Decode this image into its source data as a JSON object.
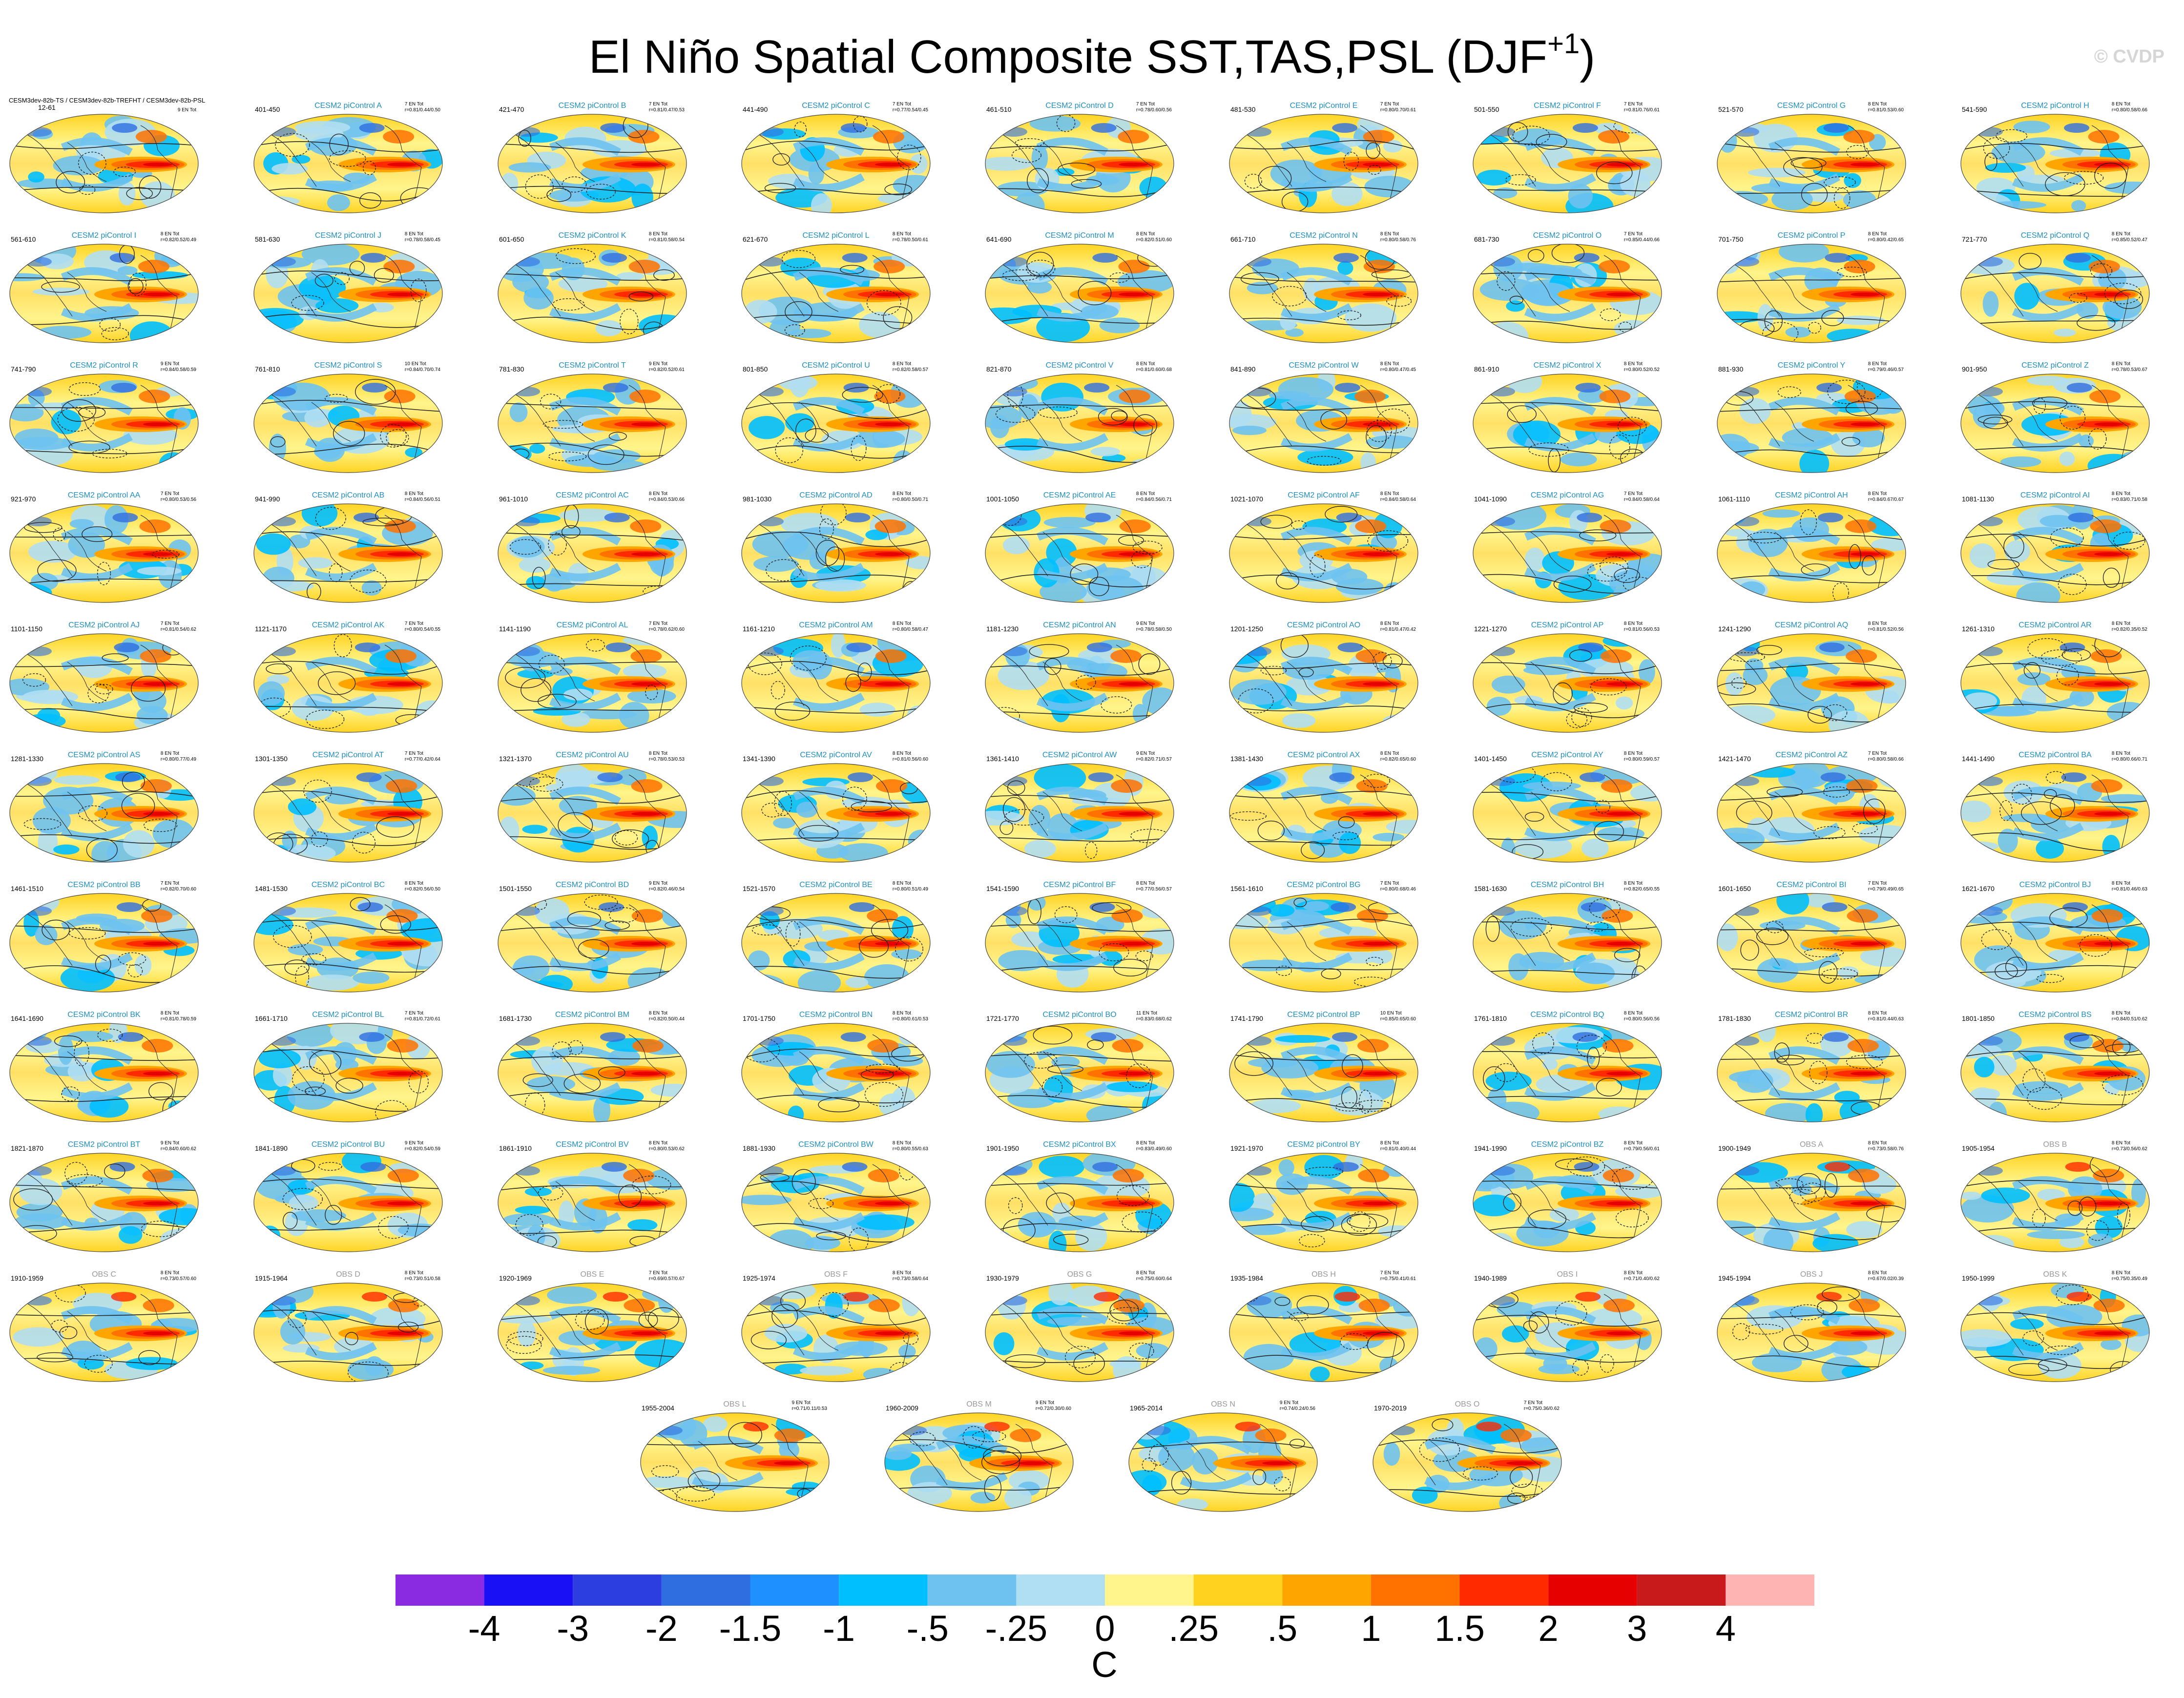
{
  "title": "El Niño Spatial Composite SST,TAS,PSL (DJF",
  "title_sup": "+1",
  "title_close": ")",
  "watermark": "© CVDP",
  "reference_panel": {
    "label": "CESM3dev-82b-TS / CESM3dev-82b-TREFHT / CESM3dev-82b-PSL",
    "years": "12-61",
    "events": "9 EN Tot"
  },
  "panels": [
    {
      "name": "CESM2 piControl A",
      "years": "401-450",
      "events": "7 EN Tot",
      "stats": "r=0.81/0.44/0.50"
    },
    {
      "name": "CESM2 piControl B",
      "years": "421-470",
      "events": "7 EN Tot",
      "stats": "r=0.81/0.47/0.53"
    },
    {
      "name": "CESM2 piControl C",
      "years": "441-490",
      "events": "7 EN Tot",
      "stats": "r=0.77/0.54/0.45"
    },
    {
      "name": "CESM2 piControl D",
      "years": "461-510",
      "events": "7 EN Tot",
      "stats": "r=0.78/0.60/0.56"
    },
    {
      "name": "CESM2 piControl E",
      "years": "481-530",
      "events": "7 EN Tot",
      "stats": "r=0.80/0.70/0.61"
    },
    {
      "name": "CESM2 piControl F",
      "years": "501-550",
      "events": "7 EN Tot",
      "stats": "r=0.81/0.76/0.61"
    },
    {
      "name": "CESM2 piControl G",
      "years": "521-570",
      "events": "8 EN Tot",
      "stats": "r=0.81/0.53/0.60"
    },
    {
      "name": "CESM2 piControl H",
      "years": "541-590",
      "events": "8 EN Tot",
      "stats": "r=0.80/0.58/0.66"
    },
    {
      "name": "CESM2 piControl I",
      "years": "561-610",
      "events": "8 EN Tot",
      "stats": "r=0.82/0.52/0.49"
    },
    {
      "name": "CESM2 piControl J",
      "years": "581-630",
      "events": "8 EN Tot",
      "stats": "r=0.78/0.58/0.45"
    },
    {
      "name": "CESM2 piControl K",
      "years": "601-650",
      "events": "8 EN Tot",
      "stats": "r=0.81/0.58/0.54"
    },
    {
      "name": "CESM2 piControl L",
      "years": "621-670",
      "events": "8 EN Tot",
      "stats": "r=0.78/0.50/0.61"
    },
    {
      "name": "CESM2 piControl M",
      "years": "641-690",
      "events": "8 EN Tot",
      "stats": "r=0.82/0.51/0.60"
    },
    {
      "name": "CESM2 piControl N",
      "years": "661-710",
      "events": "8 EN Tot",
      "stats": "r=0.80/0.58/0.76"
    },
    {
      "name": "CESM2 piControl O",
      "years": "681-730",
      "events": "7 EN Tot",
      "stats": "r=0.85/0.44/0.66"
    },
    {
      "name": "CESM2 piControl P",
      "years": "701-750",
      "events": "8 EN Tot",
      "stats": "r=0.80/0.42/0.65"
    },
    {
      "name": "CESM2 piControl Q",
      "years": "721-770",
      "events": "8 EN Tot",
      "stats": "r=0.85/0.52/0.47"
    },
    {
      "name": "CESM2 piControl R",
      "years": "741-790",
      "events": "9 EN Tot",
      "stats": "r=0.84/0.58/0.59"
    },
    {
      "name": "CESM2 piControl S",
      "years": "761-810",
      "events": "10 EN Tot",
      "stats": "r=0.84/0.70/0.74"
    },
    {
      "name": "CESM2 piControl T",
      "years": "781-830",
      "events": "9 EN Tot",
      "stats": "r=0.82/0.52/0.61"
    },
    {
      "name": "CESM2 piControl U",
      "years": "801-850",
      "events": "8 EN Tot",
      "stats": "r=0.82/0.58/0.57"
    },
    {
      "name": "CESM2 piControl V",
      "years": "821-870",
      "events": "8 EN Tot",
      "stats": "r=0.81/0.60/0.68"
    },
    {
      "name": "CESM2 piControl W",
      "years": "841-890",
      "events": "8 EN Tot",
      "stats": "r=0.80/0.47/0.45"
    },
    {
      "name": "CESM2 piControl X",
      "years": "861-910",
      "events": "8 EN Tot",
      "stats": "r=0.80/0.52/0.52"
    },
    {
      "name": "CESM2 piControl Y",
      "years": "881-930",
      "events": "8 EN Tot",
      "stats": "r=0.79/0.46/0.57"
    },
    {
      "name": "CESM2 piControl Z",
      "years": "901-950",
      "events": "8 EN Tot",
      "stats": "r=0.78/0.53/0.67"
    },
    {
      "name": "CESM2 piControl AA",
      "years": "921-970",
      "events": "7 EN Tot",
      "stats": "r=0.80/0.53/0.56"
    },
    {
      "name": "CESM2 piControl AB",
      "years": "941-990",
      "events": "8 EN Tot",
      "stats": "r=0.84/0.56/0.51"
    },
    {
      "name": "CESM2 piControl AC",
      "years": "961-1010",
      "events": "8 EN Tot",
      "stats": "r=0.84/0.53/0.66"
    },
    {
      "name": "CESM2 piControl AD",
      "years": "981-1030",
      "events": "8 EN Tot",
      "stats": "r=0.80/0.50/0.71"
    },
    {
      "name": "CESM2 piControl AE",
      "years": "1001-1050",
      "events": "8 EN Tot",
      "stats": "r=0.84/0.56/0.71"
    },
    {
      "name": "CESM2 piControl AF",
      "years": "1021-1070",
      "events": "8 EN Tot",
      "stats": "r=0.84/0.58/0.64"
    },
    {
      "name": "CESM2 piControl AG",
      "years": "1041-1090",
      "events": "7 EN Tot",
      "stats": "r=0.84/0.58/0.64"
    },
    {
      "name": "CESM2 piControl AH",
      "years": "1061-1110",
      "events": "8 EN Tot",
      "stats": "r=0.84/0.67/0.67"
    },
    {
      "name": "CESM2 piControl AI",
      "years": "1081-1130",
      "events": "8 EN Tot",
      "stats": "r=0.83/0.71/0.58"
    },
    {
      "name": "CESM2 piControl AJ",
      "years": "1101-1150",
      "events": "7 EN Tot",
      "stats": "r=0.81/0.54/0.62"
    },
    {
      "name": "CESM2 piControl AK",
      "years": "1121-1170",
      "events": "7 EN Tot",
      "stats": "r=0.80/0.54/0.55"
    },
    {
      "name": "CESM2 piControl AL",
      "years": "1141-1190",
      "events": "7 EN Tot",
      "stats": "r=0.78/0.62/0.60"
    },
    {
      "name": "CESM2 piControl AM",
      "years": "1161-1210",
      "events": "8 EN Tot",
      "stats": "r=0.80/0.58/0.47"
    },
    {
      "name": "CESM2 piControl AN",
      "years": "1181-1230",
      "events": "9 EN Tot",
      "stats": "r=0.78/0.58/0.50"
    },
    {
      "name": "CESM2 piControl AO",
      "years": "1201-1250",
      "events": "8 EN Tot",
      "stats": "r=0.81/0.47/0.42"
    },
    {
      "name": "CESM2 piControl AP",
      "years": "1221-1270",
      "events": "8 EN Tot",
      "stats": "r=0.81/0.56/0.53"
    },
    {
      "name": "CESM2 piControl AQ",
      "years": "1241-1290",
      "events": "8 EN Tot",
      "stats": "r=0.81/0.52/0.56"
    },
    {
      "name": "CESM2 piControl AR",
      "years": "1261-1310",
      "events": "8 EN Tot",
      "stats": "r=0.82/0.35/0.52"
    },
    {
      "name": "CESM2 piControl AS",
      "years": "1281-1330",
      "events": "8 EN Tot",
      "stats": "r=0.80/0.77/0.49"
    },
    {
      "name": "CESM2 piControl AT",
      "years": "1301-1350",
      "events": "7 EN Tot",
      "stats": "r=0.77/0.42/0.64"
    },
    {
      "name": "CESM2 piControl AU",
      "years": "1321-1370",
      "events": "8 EN Tot",
      "stats": "r=0.78/0.53/0.53"
    },
    {
      "name": "CESM2 piControl AV",
      "years": "1341-1390",
      "events": "8 EN Tot",
      "stats": "r=0.81/0.56/0.60"
    },
    {
      "name": "CESM2 piControl AW",
      "years": "1361-1410",
      "events": "9 EN Tot",
      "stats": "r=0.82/0.71/0.57"
    },
    {
      "name": "CESM2 piControl AX",
      "years": "1381-1430",
      "events": "8 EN Tot",
      "stats": "r=0.82/0.65/0.60"
    },
    {
      "name": "CESM2 piControl AY",
      "years": "1401-1450",
      "events": "8 EN Tot",
      "stats": "r=0.80/0.59/0.57"
    },
    {
      "name": "CESM2 piControl AZ",
      "years": "1421-1470",
      "events": "7 EN Tot",
      "stats": "r=0.80/0.58/0.66"
    },
    {
      "name": "CESM2 piControl BA",
      "years": "1441-1490",
      "events": "8 EN Tot",
      "stats": "r=0.80/0.66/0.71"
    },
    {
      "name": "CESM2 piControl BB",
      "years": "1461-1510",
      "events": "7 EN Tot",
      "stats": "r=0.82/0.70/0.60"
    },
    {
      "name": "CESM2 piControl BC",
      "years": "1481-1530",
      "events": "8 EN Tot",
      "stats": "r=0.82/0.56/0.50"
    },
    {
      "name": "CESM2 piControl BD",
      "years": "1501-1550",
      "events": "9 EN Tot",
      "stats": "r=0.82/0.46/0.54"
    },
    {
      "name": "CESM2 piControl BE",
      "years": "1521-1570",
      "events": "8 EN Tot",
      "stats": "r=0.80/0.51/0.49"
    },
    {
      "name": "CESM2 piControl BF",
      "years": "1541-1590",
      "events": "8 EN Tot",
      "stats": "r=0.77/0.56/0.57"
    },
    {
      "name": "CESM2 piControl BG",
      "years": "1561-1610",
      "events": "7 EN Tot",
      "stats": "r=0.80/0.68/0.46"
    },
    {
      "name": "CESM2 piControl BH",
      "years": "1581-1630",
      "events": "8 EN Tot",
      "stats": "r=0.82/0.65/0.55"
    },
    {
      "name": "CESM2 piControl BI",
      "years": "1601-1650",
      "events": "7 EN Tot",
      "stats": "r=0.79/0.49/0.65"
    },
    {
      "name": "CESM2 piControl BJ",
      "years": "1621-1670",
      "events": "8 EN Tot",
      "stats": "r=0.81/0.46/0.63"
    },
    {
      "name": "CESM2 piControl BK",
      "years": "1641-1690",
      "events": "8 EN Tot",
      "stats": "r=0.81/0.78/0.59"
    },
    {
      "name": "CESM2 piControl BL",
      "years": "1661-1710",
      "events": "7 EN Tot",
      "stats": "r=0.81/0.72/0.61"
    },
    {
      "name": "CESM2 piControl BM",
      "years": "1681-1730",
      "events": "8 EN Tot",
      "stats": "r=0.82/0.50/0.44"
    },
    {
      "name": "CESM2 piControl BN",
      "years": "1701-1750",
      "events": "8 EN Tot",
      "stats": "r=0.80/0.61/0.53"
    },
    {
      "name": "CESM2 piControl BO",
      "years": "1721-1770",
      "events": "11 EN Tot",
      "stats": "r=0.83/0.68/0.62"
    },
    {
      "name": "CESM2 piControl BP",
      "years": "1741-1790",
      "events": "10 EN Tot",
      "stats": "r=0.85/0.65/0.60"
    },
    {
      "name": "CESM2 piControl BQ",
      "years": "1761-1810",
      "events": "8 EN Tot",
      "stats": "r=0.80/0.56/0.56"
    },
    {
      "name": "CESM2 piControl BR",
      "years": "1781-1830",
      "events": "8 EN Tot",
      "stats": "r=0.81/0.44/0.63"
    },
    {
      "name": "CESM2 piControl BS",
      "years": "1801-1850",
      "events": "8 EN Tot",
      "stats": "r=0.84/0.51/0.62"
    },
    {
      "name": "CESM2 piControl BT",
      "years": "1821-1870",
      "events": "9 EN Tot",
      "stats": "r=0.84/0.60/0.62"
    },
    {
      "name": "CESM2 piControl BU",
      "years": "1841-1890",
      "events": "9 EN Tot",
      "stats": "r=0.82/0.54/0.59"
    },
    {
      "name": "CESM2 piControl BV",
      "years": "1861-1910",
      "events": "8 EN Tot",
      "stats": "r=0.80/0.53/0.62"
    },
    {
      "name": "CESM2 piControl BW",
      "years": "1881-1930",
      "events": "8 EN Tot",
      "stats": "r=0.80/0.55/0.63"
    },
    {
      "name": "CESM2 piControl BX",
      "years": "1901-1950",
      "events": "8 EN Tot",
      "stats": "r=0.83/0.49/0.60"
    },
    {
      "name": "CESM2 piControl BY",
      "years": "1921-1970",
      "events": "8 EN Tot",
      "stats": "r=0.81/0.40/0.44"
    },
    {
      "name": "CESM2 piControl BZ",
      "years": "1941-1990",
      "events": "8 EN Tot",
      "stats": "r=0.79/0.56/0.61"
    },
    {
      "name": "OBS A",
      "years": "1900-1949",
      "events": "8 EN Tot",
      "stats": "r=0.73/0.58/0.76"
    },
    {
      "name": "OBS B",
      "years": "1905-1954",
      "events": "8 EN Tot",
      "stats": "r=0.73/0.56/0.62"
    },
    {
      "name": "OBS C",
      "years": "1910-1959",
      "events": "8 EN Tot",
      "stats": "r=0.73/0.57/0.60"
    },
    {
      "name": "OBS D",
      "years": "1915-1964",
      "events": "8 EN Tot",
      "stats": "r=0.73/0.51/0.58"
    },
    {
      "name": "OBS E",
      "years": "1920-1969",
      "events": "7 EN Tot",
      "stats": "r=0.69/0.57/0.67"
    },
    {
      "name": "OBS F",
      "years": "1925-1974",
      "events": "8 EN Tot",
      "stats": "r=0.73/0.58/0.64"
    },
    {
      "name": "OBS G",
      "years": "1930-1979",
      "events": "8 EN Tot",
      "stats": "r=0.75/0.60/0.64"
    },
    {
      "name": "OBS H",
      "years": "1935-1984",
      "events": "7 EN Tot",
      "stats": "r=0.75/0.41/0.61"
    },
    {
      "name": "OBS I",
      "years": "1940-1989",
      "events": "8 EN Tot",
      "stats": "r=0.71/0.40/0.62"
    },
    {
      "name": "OBS J",
      "years": "1945-1994",
      "events": "8 EN Tot",
      "stats": "r=0.67/0.02/0.39"
    },
    {
      "name": "OBS K",
      "years": "1950-1999",
      "events": "8 EN Tot",
      "stats": "r=0.75/0.35/0.49"
    },
    {
      "name": "OBS L",
      "years": "1955-2004",
      "events": "9 EN Tot",
      "stats": "r=0.71/0.11/0.53"
    },
    {
      "name": "OBS M",
      "years": "1960-2009",
      "events": "9 EN Tot",
      "stats": "r=0.72/0.30/0.60"
    },
    {
      "name": "OBS N",
      "years": "1965-2014",
      "events": "9 EN Tot",
      "stats": "r=0.74/0.24/0.56"
    },
    {
      "name": "OBS O",
      "years": "1970-2019",
      "events": "7 EN Tot",
      "stats": "r=0.75/0.36/0.62"
    }
  ],
  "colorbar": {
    "colors": [
      "#8a2be2",
      "#1a10f5",
      "#2c3ee0",
      "#2f6ee0",
      "#1e90ff",
      "#00bfff",
      "#6ec2f0",
      "#b0def2",
      "#fff58c",
      "#ffd21f",
      "#ffa500",
      "#ff7200",
      "#ff2a00",
      "#e60000",
      "#c81a1a",
      "#ffb4b4"
    ],
    "labels": [
      "-4",
      "-3",
      "-2",
      "-1.5",
      "-1",
      "-.5",
      "-.25",
      "0",
      ".25",
      ".5",
      "1",
      "1.5",
      "2",
      "3",
      "4"
    ],
    "units": "C"
  }
}
